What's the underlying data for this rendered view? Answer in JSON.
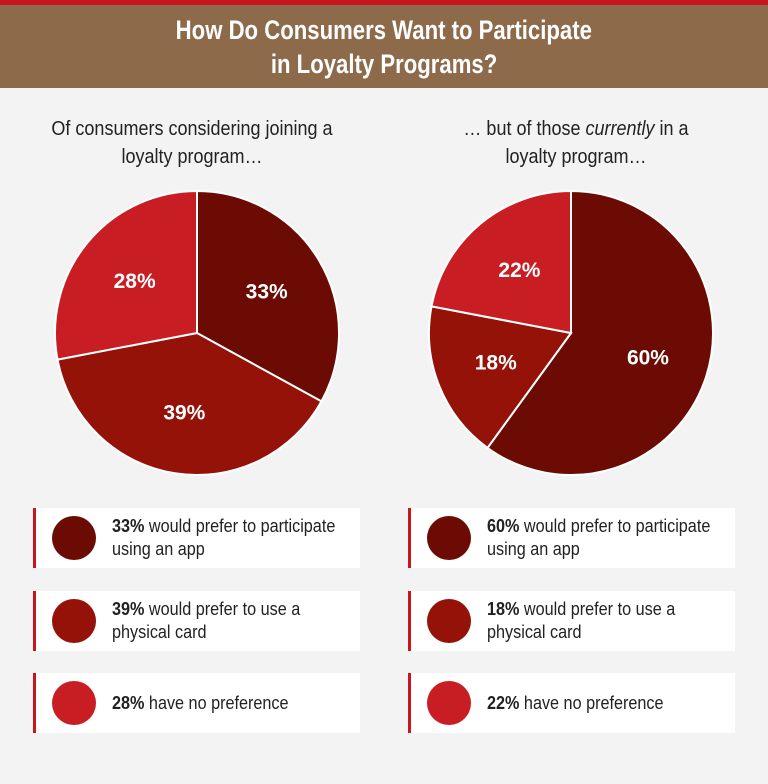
{
  "colors": {
    "dark": "#6b0b04",
    "medium": "#951208",
    "bright": "#c91d24",
    "header_bg": "#8c6a4a",
    "accent": "#c8161d"
  },
  "header": {
    "title_line1": "How Do Consumers Want to Participate",
    "title_line2": "in Loyalty Programs?"
  },
  "left": {
    "subtitle_line1": "Of consumers considering joining a",
    "subtitle_line2": "loyalty program…",
    "legend": [
      {
        "value": "33%",
        "text_line1": " would prefer to participate",
        "text_line2": "using an app"
      },
      {
        "value": "39%",
        "text_line1": " would prefer to use a",
        "text_line2": "physical card"
      },
      {
        "value": "28%",
        "text_line1": " have no preference",
        "text_line2": ""
      }
    ]
  },
  "right": {
    "subtitle_line1_prefix": "… but of those ",
    "subtitle_line1_italic": "currently",
    "subtitle_line1_suffix": " in a",
    "subtitle_line2": "loyalty program…",
    "legend": [
      {
        "value": "60%",
        "text_line1": " would prefer to participate",
        "text_line2": "using an app"
      },
      {
        "value": "18%",
        "text_line1": " would prefer to use a",
        "text_line2": "physical card"
      },
      {
        "value": "22%",
        "text_line1": " have no preference",
        "text_line2": ""
      }
    ]
  },
  "chart_data": [
    {
      "type": "pie",
      "title": "Of consumers considering joining a loyalty program…",
      "categories": [
        "would prefer to participate using an app",
        "would prefer to use a physical card",
        "have no preference"
      ],
      "values": [
        33,
        39,
        28
      ],
      "labels": [
        "33%",
        "39%",
        "28%"
      ],
      "colors": [
        "#6b0b04",
        "#951208",
        "#c91d24"
      ]
    },
    {
      "type": "pie",
      "title": "… but of those currently in a loyalty program…",
      "categories": [
        "would prefer to participate using an app",
        "would prefer to use a physical card",
        "have no preference"
      ],
      "values": [
        60,
        18,
        22
      ],
      "labels": [
        "60%",
        "18%",
        "22%"
      ],
      "colors": [
        "#6b0b04",
        "#951208",
        "#c91d24"
      ]
    }
  ]
}
